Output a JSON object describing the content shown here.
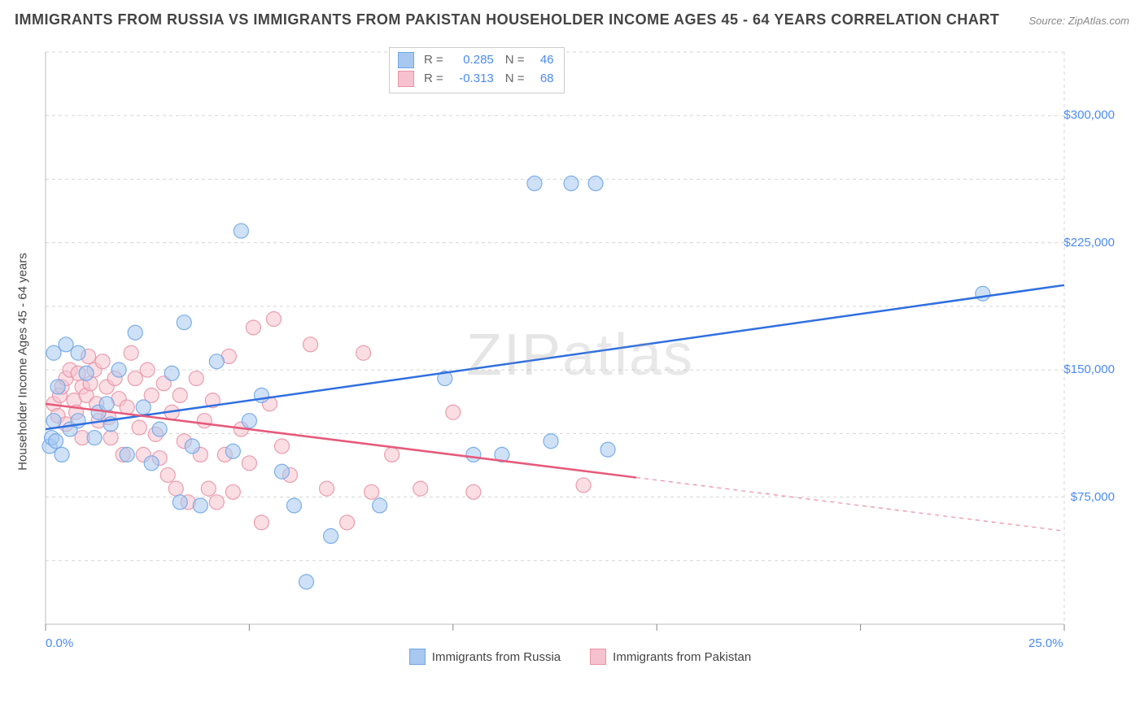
{
  "title": "IMMIGRANTS FROM RUSSIA VS IMMIGRANTS FROM PAKISTAN HOUSEHOLDER INCOME AGES 45 - 64 YEARS CORRELATION CHART",
  "source": "Source: ZipAtlas.com",
  "watermark_a": "ZIP",
  "watermark_b": "atlas",
  "ylabel": "Householder Income Ages 45 - 64 years",
  "r_box": [
    {
      "swatch_fill": "#a8c8f0",
      "swatch_border": "#6fa6e6",
      "r": "0.285",
      "n": "46"
    },
    {
      "swatch_fill": "#f6c2cd",
      "swatch_border": "#e893a6",
      "r": "-0.313",
      "n": "68"
    }
  ],
  "legend": [
    {
      "swatch_fill": "#a8c8f0",
      "swatch_border": "#6fa6e6",
      "label": "Immigrants from Russia"
    },
    {
      "swatch_fill": "#f6c2cd",
      "swatch_border": "#e893a6",
      "label": "Immigrants from Pakistan"
    }
  ],
  "chart": {
    "type": "scatter",
    "plot_bg": "#ffffff",
    "grid_color": "#d5d5d5",
    "grid_dash": "4 4",
    "axis_color": "#bbbbbb",
    "tick_color": "#888888",
    "xlim": [
      0,
      25
    ],
    "ylim": [
      0,
      337500
    ],
    "x_tick_at": [
      0,
      5,
      10,
      15,
      20,
      25
    ],
    "x_tick_labels": {
      "0": "0.0%",
      "25": "25.0%"
    },
    "y_gridlines": [
      37500,
      75000,
      112500,
      150000,
      187500,
      225000,
      262500,
      300000,
      337500
    ],
    "y_labels": {
      "75000": "$75,000",
      "150000": "$150,000",
      "225000": "$225,000",
      "300000": "$300,000"
    },
    "marker_radius": 9,
    "marker_opacity": 0.55,
    "series": {
      "blue": {
        "fill": "#a8c8f0",
        "stroke": "#6fa6e6",
        "trend_color": "#2f6fe0",
        "trend": {
          "x1": 0,
          "y1": 115000,
          "x2": 25,
          "y2": 200000,
          "dash_from_x": null
        },
        "points": [
          [
            0.1,
            105000
          ],
          [
            0.15,
            110000
          ],
          [
            0.2,
            120000
          ],
          [
            0.2,
            160000
          ],
          [
            0.25,
            108000
          ],
          [
            0.3,
            140000
          ],
          [
            0.4,
            100000
          ],
          [
            0.5,
            165000
          ],
          [
            0.6,
            115000
          ],
          [
            0.8,
            120000
          ],
          [
            0.8,
            160000
          ],
          [
            1.0,
            148000
          ],
          [
            1.2,
            110000
          ],
          [
            1.3,
            125000
          ],
          [
            1.5,
            130000
          ],
          [
            1.6,
            118000
          ],
          [
            1.8,
            150000
          ],
          [
            2.0,
            100000
          ],
          [
            2.2,
            172000
          ],
          [
            2.4,
            128000
          ],
          [
            2.6,
            95000
          ],
          [
            2.8,
            115000
          ],
          [
            3.1,
            148000
          ],
          [
            3.3,
            72000
          ],
          [
            3.4,
            178000
          ],
          [
            3.6,
            105000
          ],
          [
            3.8,
            70000
          ],
          [
            4.2,
            155000
          ],
          [
            4.6,
            102000
          ],
          [
            4.8,
            232000
          ],
          [
            5.0,
            120000
          ],
          [
            5.3,
            135000
          ],
          [
            5.8,
            90000
          ],
          [
            6.1,
            70000
          ],
          [
            6.4,
            25000
          ],
          [
            7.0,
            52000
          ],
          [
            8.2,
            70000
          ],
          [
            9.8,
            145000
          ],
          [
            10.5,
            100000
          ],
          [
            11.2,
            100000
          ],
          [
            12.4,
            108000
          ],
          [
            12.0,
            260000
          ],
          [
            12.9,
            260000
          ],
          [
            13.5,
            260000
          ],
          [
            13.8,
            103000
          ],
          [
            23.0,
            195000
          ]
        ]
      },
      "pink": {
        "fill": "#f6c2cd",
        "stroke": "#e893a6",
        "trend_color": "#e65a7b",
        "trend": {
          "x1": 0,
          "y1": 130000,
          "x2": 25,
          "y2": 55000,
          "dash_from_x": 14.5
        },
        "points": [
          [
            0.2,
            130000
          ],
          [
            0.3,
            123000
          ],
          [
            0.35,
            135000
          ],
          [
            0.4,
            140000
          ],
          [
            0.5,
            145000
          ],
          [
            0.5,
            118000
          ],
          [
            0.6,
            150000
          ],
          [
            0.7,
            132000
          ],
          [
            0.75,
            125000
          ],
          [
            0.8,
            148000
          ],
          [
            0.9,
            140000
          ],
          [
            0.9,
            110000
          ],
          [
            1.0,
            135000
          ],
          [
            1.05,
            158000
          ],
          [
            1.1,
            142000
          ],
          [
            1.2,
            150000
          ],
          [
            1.25,
            130000
          ],
          [
            1.3,
            120000
          ],
          [
            1.4,
            155000
          ],
          [
            1.5,
            140000
          ],
          [
            1.55,
            122000
          ],
          [
            1.6,
            110000
          ],
          [
            1.7,
            145000
          ],
          [
            1.8,
            133000
          ],
          [
            1.9,
            100000
          ],
          [
            2.0,
            128000
          ],
          [
            2.1,
            160000
          ],
          [
            2.2,
            145000
          ],
          [
            2.3,
            116000
          ],
          [
            2.4,
            100000
          ],
          [
            2.5,
            150000
          ],
          [
            2.6,
            135000
          ],
          [
            2.7,
            112000
          ],
          [
            2.8,
            98000
          ],
          [
            2.9,
            142000
          ],
          [
            3.0,
            88000
          ],
          [
            3.1,
            125000
          ],
          [
            3.2,
            80000
          ],
          [
            3.3,
            135000
          ],
          [
            3.4,
            108000
          ],
          [
            3.5,
            72000
          ],
          [
            3.7,
            145000
          ],
          [
            3.8,
            100000
          ],
          [
            3.9,
            120000
          ],
          [
            4.0,
            80000
          ],
          [
            4.1,
            132000
          ],
          [
            4.2,
            72000
          ],
          [
            4.4,
            100000
          ],
          [
            4.5,
            158000
          ],
          [
            4.6,
            78000
          ],
          [
            4.8,
            115000
          ],
          [
            5.0,
            95000
          ],
          [
            5.1,
            175000
          ],
          [
            5.3,
            60000
          ],
          [
            5.5,
            130000
          ],
          [
            5.6,
            180000
          ],
          [
            5.8,
            105000
          ],
          [
            6.0,
            88000
          ],
          [
            6.5,
            165000
          ],
          [
            6.9,
            80000
          ],
          [
            7.4,
            60000
          ],
          [
            7.8,
            160000
          ],
          [
            8.0,
            78000
          ],
          [
            8.5,
            100000
          ],
          [
            9.2,
            80000
          ],
          [
            10.0,
            125000
          ],
          [
            10.5,
            78000
          ],
          [
            13.2,
            82000
          ]
        ]
      }
    }
  },
  "colors": {
    "title": "#444444",
    "label": "#444444",
    "tick_label": "#4a8af4"
  },
  "fontsize": {
    "title": 18,
    "axis_label": 15,
    "tick": 15,
    "legend": 15
  }
}
